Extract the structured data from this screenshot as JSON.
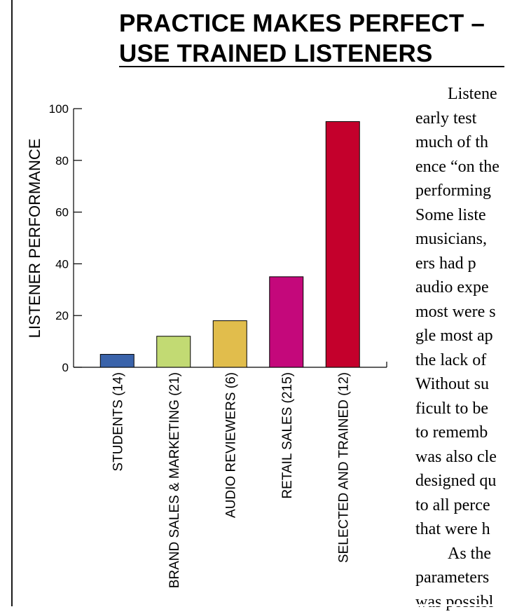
{
  "title": {
    "line1": "PRACTICE MAKES PERFECT –",
    "line2": "USE TRAINED LISTENERS"
  },
  "chart_data": {
    "type": "bar",
    "ylabel": "LISTENER PERFORMANCE",
    "ylim": [
      0,
      100
    ],
    "yticks": [
      0,
      20,
      40,
      60,
      80,
      100
    ],
    "categories": [
      "STUDENTS (14)",
      "BRAND SALES & MARKETING (21)",
      "AUDIO REVIEWERS (6)",
      "RETAIL SALES (215)",
      "SELECTED AND TRAINED (12)"
    ],
    "values": [
      5,
      12,
      18,
      35,
      95
    ],
    "colors": [
      "#3a63aa",
      "#c2da73",
      "#e1bd4c",
      "#c4087b",
      "#c4002c"
    ]
  },
  "article": {
    "lines": [
      "Listene",
      "early    test",
      "much of th",
      "ence “on the",
      "performing",
      "Some   liste",
      "musicians,",
      "ers    had    p",
      "audio  expe",
      "most were s",
      "gle most ap",
      "the lack of",
      "Without su",
      "ficult to be",
      "to rememb",
      "was also cle",
      "designed qu",
      "to all perce",
      "that were h",
      "As the",
      "parameters",
      "was possibl"
    ]
  }
}
